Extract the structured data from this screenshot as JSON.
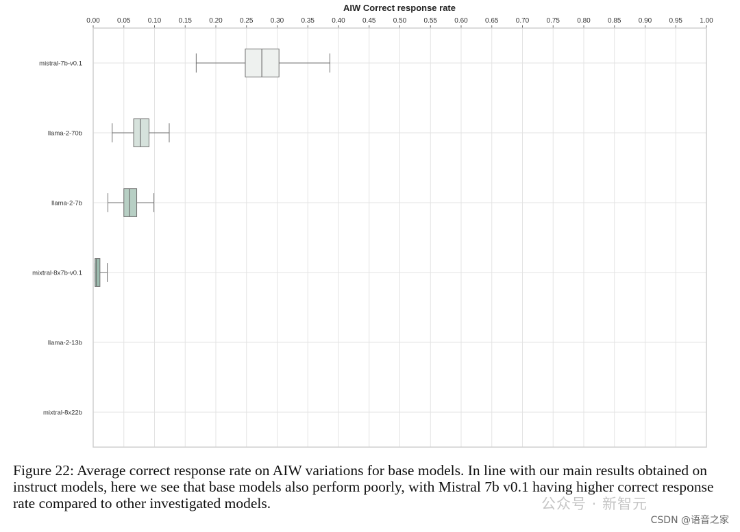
{
  "chart_data": {
    "type": "boxplot",
    "orientation": "horizontal",
    "title": "AIW Correct response rate",
    "xlabel": "",
    "ylabel": "",
    "xlim": [
      0,
      1
    ],
    "x_ticks": [
      "0.00",
      "0.05",
      "0.10",
      "0.15",
      "0.20",
      "0.25",
      "0.30",
      "0.35",
      "0.40",
      "0.45",
      "0.50",
      "0.55",
      "0.60",
      "0.65",
      "0.70",
      "0.75",
      "0.80",
      "0.85",
      "0.90",
      "0.95",
      "1.00"
    ],
    "x_axis_position": "top",
    "grid": true,
    "categories": [
      "mistral-7b-v0.1",
      "llama-2-70b",
      "llama-2-7b",
      "mixtral-8x7b-v0.1",
      "llama-2-13b",
      "mixtral-8x22b"
    ],
    "boxes": [
      {
        "model": "mistral-7b-v0.1",
        "whisker_low": 0.168,
        "q1": 0.248,
        "median": 0.275,
        "q3": 0.303,
        "whisker_high": 0.386,
        "color": "#eef1ef"
      },
      {
        "model": "llama-2-70b",
        "whisker_low": 0.031,
        "q1": 0.066,
        "median": 0.077,
        "q3": 0.091,
        "whisker_high": 0.124,
        "color": "#d6e2dc"
      },
      {
        "model": "llama-2-7b",
        "whisker_low": 0.024,
        "q1": 0.05,
        "median": 0.059,
        "q3": 0.071,
        "whisker_high": 0.099,
        "color": "#b7cfc4"
      },
      {
        "model": "mixtral-8x7b-v0.1",
        "whisker_low": 0.003,
        "q1": 0.003,
        "median": 0.005,
        "q3": 0.011,
        "whisker_high": 0.023,
        "color": "#9cbcaf"
      },
      {
        "model": "llama-2-13b",
        "whisker_low": 0,
        "q1": 0,
        "median": 0,
        "q3": 0,
        "whisker_high": 0,
        "color": "#8eb2a4"
      },
      {
        "model": "mixtral-8x22b",
        "whisker_low": 0,
        "q1": 0,
        "median": 0,
        "q3": 0,
        "whisker_high": 0,
        "color": "#8eb2a4"
      }
    ]
  },
  "caption": "Figure 22: Average correct response rate on AIW variations for base models. In line with our main results obtained on instruct models, here we see that base models also perform poorly, with Mistral 7b v0.1 having higher correct response rate compared to other investigated models.",
  "watermark": "公众号 · 新智元",
  "credit": "CSDN @语音之家"
}
